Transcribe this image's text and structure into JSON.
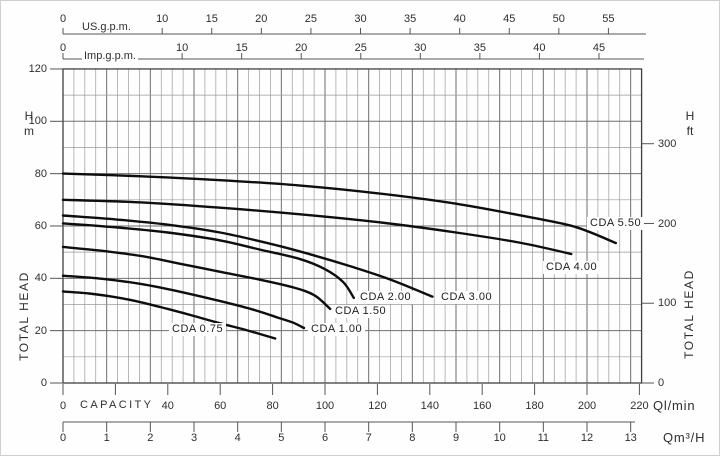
{
  "chart_data": {
    "type": "line",
    "description": "Pump performance curves: total head vs capacity for CDA series",
    "axes": {
      "us_gpm": {
        "label": "US.g.p.m.",
        "ticks": [
          0,
          10,
          15,
          20,
          25,
          30,
          35,
          40,
          45,
          50,
          55
        ]
      },
      "imp_gpm": {
        "label": "Imp.g.p.m.",
        "ticks": [
          0,
          10,
          15,
          20,
          25,
          30,
          35,
          40,
          45
        ]
      },
      "capacity_lmin": {
        "word": "CAPACITY",
        "unit": "Ql/min",
        "labeled_ticks": [
          0,
          40,
          60,
          80,
          100,
          120,
          140,
          160,
          180,
          200,
          220
        ],
        "tick_step": 20,
        "range": [
          0,
          220
        ]
      },
      "capacity_m3h": {
        "unit": "Qm³/H",
        "ticks": [
          0,
          1,
          2,
          3,
          4,
          5,
          6,
          7,
          8,
          9,
          10,
          11,
          12,
          13
        ]
      },
      "head_m": {
        "symbol": "H",
        "unit": "m",
        "axis_title": "TOTAL HEAD",
        "ticks": [
          0,
          20,
          40,
          60,
          80,
          100,
          120
        ],
        "range": [
          0,
          120
        ]
      },
      "head_ft": {
        "symbol": "H",
        "unit": "ft",
        "axis_title": "TOTAL HEAD",
        "ticks": [
          0,
          100,
          200,
          300
        ]
      }
    },
    "series": [
      {
        "name": "CDA 0.75",
        "points_lmin_m": [
          [
            0,
            35
          ],
          [
            10,
            34.2
          ],
          [
            20,
            32.8
          ],
          [
            30,
            30.8
          ],
          [
            40,
            28.3
          ],
          [
            50,
            25.6
          ],
          [
            60,
            22.8
          ],
          [
            70,
            20.2
          ],
          [
            81,
            17
          ]
        ]
      },
      {
        "name": "CDA 1.00",
        "points_lmin_m": [
          [
            0,
            41
          ],
          [
            15,
            39.8
          ],
          [
            30,
            37.8
          ],
          [
            45,
            34.8
          ],
          [
            60,
            31.3
          ],
          [
            72,
            28.2
          ],
          [
            82,
            25
          ],
          [
            88,
            23
          ],
          [
            92,
            21
          ]
        ]
      },
      {
        "name": "CDA 1.50",
        "points_lmin_m": [
          [
            0,
            52
          ],
          [
            15,
            50.5
          ],
          [
            30,
            48.5
          ],
          [
            45,
            45.5
          ],
          [
            60,
            42.5
          ],
          [
            75,
            39.5
          ],
          [
            88,
            36.5
          ],
          [
            96,
            33.5
          ],
          [
            102,
            28.3
          ]
        ]
      },
      {
        "name": "CDA 2.00",
        "points_lmin_m": [
          [
            0,
            61
          ],
          [
            20,
            59.5
          ],
          [
            40,
            57.5
          ],
          [
            60,
            54.5
          ],
          [
            75,
            51
          ],
          [
            90,
            47.5
          ],
          [
            100,
            43.5
          ],
          [
            107,
            38.5
          ],
          [
            111,
            32.5
          ]
        ]
      },
      {
        "name": "CDA 3.00",
        "points_lmin_m": [
          [
            0,
            64
          ],
          [
            20,
            62.5
          ],
          [
            40,
            60.5
          ],
          [
            60,
            57.5
          ],
          [
            80,
            53
          ],
          [
            95,
            49
          ],
          [
            110,
            44.5
          ],
          [
            125,
            39.5
          ],
          [
            141,
            33
          ]
        ]
      },
      {
        "name": "CDA 4.00",
        "points_lmin_m": [
          [
            0,
            70
          ],
          [
            30,
            69
          ],
          [
            60,
            67
          ],
          [
            90,
            64.5
          ],
          [
            120,
            61.5
          ],
          [
            150,
            57.5
          ],
          [
            175,
            53.5
          ],
          [
            194,
            49.3
          ]
        ]
      },
      {
        "name": "CDA 5.50",
        "points_lmin_m": [
          [
            0,
            80
          ],
          [
            30,
            79
          ],
          [
            60,
            77.5
          ],
          [
            90,
            75.5
          ],
          [
            120,
            72.5
          ],
          [
            150,
            68.5
          ],
          [
            180,
            63
          ],
          [
            196,
            59.5
          ],
          [
            211,
            53.5
          ]
        ]
      }
    ],
    "colors": {
      "curve": "#0e0e0e",
      "grid_minor": "#9a9a9a",
      "grid_major": "#6f6f6f",
      "border": "#3f3f3f",
      "axis": "#555555",
      "text": "#2e2e2e"
    }
  }
}
